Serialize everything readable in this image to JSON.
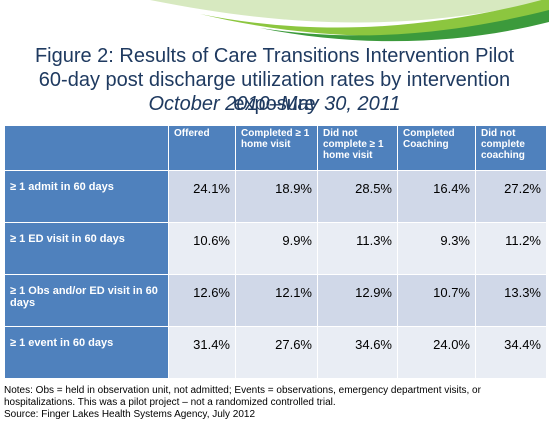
{
  "header": {
    "title": "Figure 2: Results of Care Transitions Intervention Pilot",
    "subtitle": "60-day post discharge utilization rates by intervention exposure",
    "period": "October 2010–May 30, 2011"
  },
  "table": {
    "columns": [
      "Offered",
      "Completed ≥ 1 home visit",
      "Did not complete ≥ 1 home visit",
      "Completed Coaching",
      "Did not complete coaching"
    ],
    "rows": [
      [
        "≥ 1 admit in 60 days",
        "24.1%",
        "18.9%",
        "28.5%",
        "16.4%",
        "27.2%"
      ],
      [
        "≥ 1  ED visit in 60 days",
        "10.6%",
        "9.9%",
        "11.3%",
        "9.3%",
        "11.2%"
      ],
      [
        "≥ 1  Obs and/or ED visit in 60 days",
        "12.6%",
        "12.1%",
        "12.9%",
        "10.7%",
        "13.3%"
      ],
      [
        "≥ 1 event in 60 days",
        "31.4%",
        "27.6%",
        "34.6%",
        "24.0%",
        "34.4%"
      ]
    ]
  },
  "footer": {
    "notes": "Notes: Obs = held in observation unit, not admitted; Events = observations, emergency department visits, or hospitalizations. This was a pilot project – not a randomized controlled trial.",
    "source": "Source: Finger Lakes Health Systems Agency, July 2012"
  }
}
